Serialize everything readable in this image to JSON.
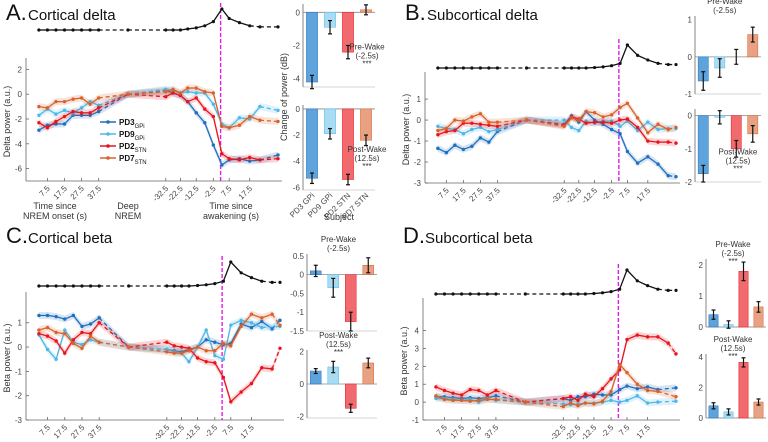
{
  "colors": {
    "PD3_GPi": "#1f6fbf",
    "PD9_GPi": "#4db8e8",
    "PD2_STN": "#e8141c",
    "PD7_STN": "#d9622b",
    "sleep": "#111111",
    "wake_line": "#e619e6"
  },
  "legend": [
    {
      "key": "PD3_GPi",
      "label": "PD3",
      "sub": "GPi"
    },
    {
      "key": "PD9_GPi",
      "label": "PD9",
      "sub": "GPi"
    },
    {
      "key": "PD2_STN",
      "label": "PD2",
      "sub": "STN"
    },
    {
      "key": "PD7_STN",
      "label": "PD7",
      "sub": "STN"
    }
  ],
  "x_groups": {
    "onset_label": "Time since NREM onset (s)",
    "deep_label": "Deep NREM",
    "wake_label": "Time since awakening (s)"
  },
  "x_tick_labels": [
    "7.5",
    "17.5",
    "27.5",
    "37.5",
    "-32.5",
    "-22.5",
    "-12.5",
    "-2.5",
    "7.5",
    "17.5"
  ],
  "bar_xlabel": "Subject",
  "bar_ylabel": "Change of power (dB)",
  "bar_categories": [
    "PD3 GPi",
    "PD9 GPi",
    "PD2 STN",
    "PD7 STN"
  ],
  "chart_data": [
    {
      "id": "A",
      "letter": "A.",
      "title": "Cortical delta",
      "type": "line",
      "ylabel": "Delta power (a.u.)",
      "ylim": [
        -7,
        2.6
      ],
      "yticks": [
        -6,
        -4,
        -2,
        0,
        2
      ],
      "series": [
        {
          "name": "PD3 GPi",
          "values": [
            -2.9,
            -2.5,
            -2.4,
            -2.4,
            -1.7,
            -1.7,
            -1.7,
            -1.4,
            0,
            0.3,
            0.1,
            -0.1,
            -0.6,
            -1.5,
            -2.3,
            -4.1,
            -5.7,
            -5.3,
            -5.2,
            -5.4,
            -5.3,
            -4.9
          ]
        },
        {
          "name": "PD9 GPi",
          "values": [
            -1.7,
            -1.2,
            -1.6,
            -1.3,
            -1.5,
            -1.1,
            -0.6,
            -0.9,
            0,
            0.4,
            0.3,
            0.1,
            0.2,
            0.1,
            0.1,
            -0.8,
            -2.4,
            -2.7,
            -1.9,
            -2.0,
            -1.0,
            -1.3
          ]
        },
        {
          "name": "PD2 STN",
          "values": [
            -2.3,
            -2.7,
            -2.2,
            -1.8,
            -1.4,
            -1.5,
            -1.5,
            -1.1,
            0,
            -0.2,
            0.1,
            -0.1,
            -0.6,
            -0.3,
            -1.2,
            -1.8,
            -4.8,
            -5.2,
            -5.3,
            -5.1,
            -5.3,
            -5.2
          ]
        },
        {
          "name": "PD7 STN",
          "values": [
            -1.0,
            -1.1,
            -0.6,
            -0.6,
            -0.4,
            -0.3,
            -0.8,
            -0.3,
            0,
            0.2,
            0.4,
            0.1,
            0.5,
            0.5,
            0.2,
            0.1,
            -2.6,
            -2.7,
            -2.5,
            -1.8,
            -2.1,
            -2.2
          ]
        }
      ],
      "sleep_index": [
        0,
        0,
        0,
        0,
        0,
        0,
        0,
        0,
        0,
        0,
        0,
        0,
        0.05,
        0.1,
        0.2,
        0.4,
        1.0,
        0.55,
        0.35,
        0.2,
        0.15,
        0.15
      ],
      "bars": [
        {
          "label": "Pre-Wake",
          "sub": "(-2.5s)",
          "sig": "***",
          "ylim": [
            -4.5,
            0.5
          ],
          "yticks": [
            -4,
            -2,
            0
          ],
          "values": [
            -4.2,
            -0.9,
            -2.4,
            0.15
          ],
          "errors": [
            0.4,
            0.4,
            0.4,
            0.3
          ],
          "label_pos": "right"
        },
        {
          "label": "Post-Wake",
          "sub": "(12.5s)",
          "sig": "***",
          "ylim": [
            -6.2,
            0.3
          ],
          "yticks": [
            -6,
            -4,
            -2,
            0
          ],
          "values": [
            -5.3,
            -1.9,
            -5.4,
            -2.4
          ],
          "errors": [
            0.4,
            0.4,
            0.4,
            0.4
          ],
          "label_pos": "right"
        }
      ]
    },
    {
      "id": "B",
      "letter": "B.",
      "title": "Subcortical delta",
      "type": "line",
      "ylabel": "Delta power (a.u.)",
      "ylim": [
        -3,
        2.1
      ],
      "yticks": [
        -3,
        -2,
        -1,
        0,
        1
      ],
      "series": [
        {
          "name": "PD3 GPi",
          "values": [
            -1.35,
            -1.55,
            -1.2,
            -1.4,
            -1.25,
            -0.85,
            -1.05,
            -0.55,
            0,
            -0.2,
            0.2,
            -0.1,
            0.4,
            0.0,
            -0.2,
            -0.45,
            -0.65,
            -1.5,
            -2.05,
            -1.75,
            -2.1,
            -2.65,
            -2.7
          ]
        },
        {
          "name": "PD9 GPi",
          "values": [
            -0.3,
            -0.4,
            -0.45,
            -0.65,
            -0.45,
            -0.35,
            -0.55,
            -0.45,
            0,
            0.0,
            -0.35,
            -0.5,
            -0.05,
            -0.15,
            -0.05,
            -0.05,
            -0.3,
            -0.05,
            -0.5,
            -0.1,
            -0.45,
            -0.4,
            -0.4
          ]
        },
        {
          "name": "PD2 STN",
          "values": [
            -0.7,
            -0.55,
            -0.5,
            -0.15,
            -0.15,
            -0.2,
            -0.25,
            -0.3,
            0,
            -0.25,
            0.15,
            0.05,
            -0.15,
            -0.1,
            -0.1,
            -0.15,
            0.0,
            0.05,
            -0.35,
            -1.0,
            -1.05,
            -1.05,
            -1.1
          ]
        },
        {
          "name": "PD7 STN",
          "values": [
            -0.5,
            -0.4,
            0.0,
            -0.05,
            0.15,
            0.3,
            -0.1,
            -0.1,
            0,
            -0.3,
            0.1,
            0.0,
            0.4,
            0.35,
            0.15,
            0.25,
            0.6,
            0.8,
            0.1,
            -0.6,
            -0.2,
            -0.45,
            -0.35
          ]
        }
      ],
      "sleep_index": [
        0,
        0,
        0,
        0,
        0,
        0,
        0,
        0,
        0,
        0,
        0,
        0,
        0,
        0.02,
        0.05,
        0.1,
        0.2,
        1.0,
        0.55,
        0.35,
        0.2,
        0.15,
        0.15
      ],
      "bars": [
        {
          "label": "Pre-Wake",
          "sub": "(-2.5s)",
          "sig": "",
          "ylim": [
            -1,
            1.1
          ],
          "yticks": [
            -1,
            0,
            1
          ],
          "values": [
            -0.65,
            -0.3,
            0,
            0.6
          ],
          "errors": [
            0.25,
            0.25,
            0.2,
            0.2
          ],
          "label_pos": "top"
        },
        {
          "label": "Post-Wake",
          "sub": "(12.5s)",
          "sig": "***",
          "ylim": [
            -2,
            0.2
          ],
          "yticks": [
            -2,
            -1,
            0
          ],
          "values": [
            -1.75,
            -0.05,
            -1.0,
            -0.55
          ],
          "errors": [
            0.25,
            0.2,
            0.25,
            0.25
          ],
          "label_pos": "bottom"
        }
      ]
    },
    {
      "id": "C",
      "letter": "C.",
      "title": "Cortical beta",
      "type": "line",
      "ylabel": "Beta power (a.u.)",
      "ylim": [
        -3,
        2.1
      ],
      "yticks": [
        -3,
        -2,
        -1,
        0,
        1
      ],
      "series": [
        {
          "name": "PD3 GPi",
          "values": [
            1.3,
            1.3,
            1.25,
            1.15,
            1.3,
            0.85,
            0.95,
            1.2,
            0,
            -0.1,
            -0.15,
            -0.2,
            -0.1,
            0.0,
            0.3,
            0.2,
            0.1,
            0.15,
            0.95,
            0.8,
            1.05,
            0.75,
            1.1
          ]
        },
        {
          "name": "PD9 GPi",
          "values": [
            0.5,
            -0.1,
            -0.5,
            0.7,
            0.2,
            0.1,
            0.3,
            0.2,
            0,
            -0.1,
            -0.2,
            -0.25,
            -0.6,
            0.0,
            0.7,
            -0.35,
            -0.5,
            0.9,
            1.1,
            1.0,
            0.8,
            0.85
          ]
        },
        {
          "name": "PD2 STN",
          "values": [
            0.55,
            0.45,
            0.25,
            -0.25,
            0.3,
            0.6,
            0.55,
            1.0,
            0,
            0.2,
            0.05,
            0.0,
            -0.05,
            -0.45,
            -0.6,
            -0.65,
            -1.25,
            -2.25,
            -1.85,
            -1.5,
            -0.85,
            -0.9,
            -0.05
          ]
        },
        {
          "name": "PD7 STN",
          "values": [
            0.7,
            0.8,
            0.6,
            0.55,
            0.15,
            -0.05,
            0.45,
            0.2,
            0,
            -0.2,
            -0.25,
            -0.25,
            -0.15,
            0.0,
            -0.15,
            -0.15,
            0.15,
            0.05,
            0.85,
            1.35,
            1.2,
            1.35,
            0.9
          ]
        }
      ],
      "sleep_index": [
        0,
        0,
        0,
        0,
        0,
        0,
        0,
        0,
        0,
        0,
        0,
        0,
        0,
        0.02,
        0.05,
        0.1,
        0.2,
        1.0,
        0.55,
        0.35,
        0.2,
        0.15,
        0.15
      ],
      "bars": [
        {
          "label": "Pre-Wake",
          "sub": "(-2.5s)",
          "sig": "",
          "ylim": [
            -1.5,
            0.55
          ],
          "yticks": [
            -1.5,
            -1,
            -0.5,
            0,
            0.5
          ],
          "values": [
            0.1,
            -0.35,
            -1.25,
            0.25
          ],
          "errors": [
            0.15,
            0.25,
            0.25,
            0.2
          ],
          "label_pos": "top"
        },
        {
          "label": "Post-Wake",
          "sub": "(12.5s)",
          "sig": "***",
          "ylim": [
            -2.1,
            2.1
          ],
          "yticks": [
            -2,
            0,
            2
          ],
          "values": [
            0.8,
            1.05,
            -1.5,
            1.3
          ],
          "errors": [
            0.15,
            0.35,
            0.25,
            0.3
          ],
          "label_pos": "top"
        }
      ]
    },
    {
      "id": "D",
      "letter": "D.",
      "title": "Subcortical beta",
      "type": "line",
      "ylabel": "Beta power (a.u.)",
      "ylim": [
        -1,
        5.6
      ],
      "yticks": [
        -1,
        0,
        1,
        2,
        3,
        4
      ],
      "series": [
        {
          "name": "PD3 GPi",
          "values": [
            0.3,
            0.3,
            0.25,
            0.2,
            0.25,
            0.2,
            0.25,
            0.35,
            0,
            0.2,
            0.1,
            0.3,
            0.3,
            0.45,
            0.4,
            0.4,
            0.7,
            0.9,
            0.75,
            0.85,
            0.7,
            0.8
          ]
        },
        {
          "name": "PD9 GPi",
          "values": [
            0.2,
            0.2,
            0.15,
            0.1,
            0.15,
            0.0,
            0.2,
            0.1,
            0,
            -0.1,
            -0.15,
            -0.1,
            -0.05,
            -0.05,
            0.0,
            0.1,
            0.0,
            0.1,
            0.35,
            -0.05,
            0.0,
            0.05
          ]
        },
        {
          "name": "PD2 STN",
          "values": [
            0.85,
            0.65,
            0.5,
            0.4,
            0.7,
            0.65,
            0.4,
            0.65,
            0,
            0.2,
            0.3,
            0.1,
            0.45,
            0.3,
            0.75,
            1.3,
            1.8,
            3.5,
            3.75,
            3.65,
            3.65,
            3.3,
            2.7
          ]
        },
        {
          "name": "PD7 STN",
          "values": [
            0.35,
            0.15,
            0.1,
            0.1,
            0.05,
            0.1,
            0.15,
            0.15,
            0,
            -0.25,
            -0.05,
            -0.2,
            -0.05,
            -0.1,
            0.05,
            0.6,
            2.1,
            1.65,
            1.0,
            0.65,
            0.6,
            0.3
          ]
        }
      ],
      "sleep_index": [
        0,
        0,
        0,
        0,
        0,
        0,
        0,
        0,
        0,
        0,
        0,
        0,
        0,
        0.02,
        0.05,
        0.1,
        0.2,
        1.0,
        0.55,
        0.35,
        0.2,
        0.15,
        0.15
      ],
      "bars": [
        {
          "label": "Pre-Wake",
          "sub": "(-2.5s)",
          "sig": "***",
          "ylim": [
            0,
            2.2
          ],
          "yticks": [
            0,
            1,
            2
          ],
          "values": [
            0.4,
            0.08,
            1.8,
            0.65
          ],
          "errors": [
            0.15,
            0.12,
            0.3,
            0.17
          ],
          "label_pos": "top"
        },
        {
          "label": "Post-Wake",
          "sub": "(12.5s)",
          "sig": "***",
          "ylim": [
            0,
            4.2
          ],
          "yticks": [
            0,
            2,
            4
          ],
          "values": [
            0.8,
            0.4,
            3.65,
            1.05
          ],
          "errors": [
            0.2,
            0.2,
            0.3,
            0.2
          ],
          "label_pos": "top"
        }
      ]
    }
  ]
}
